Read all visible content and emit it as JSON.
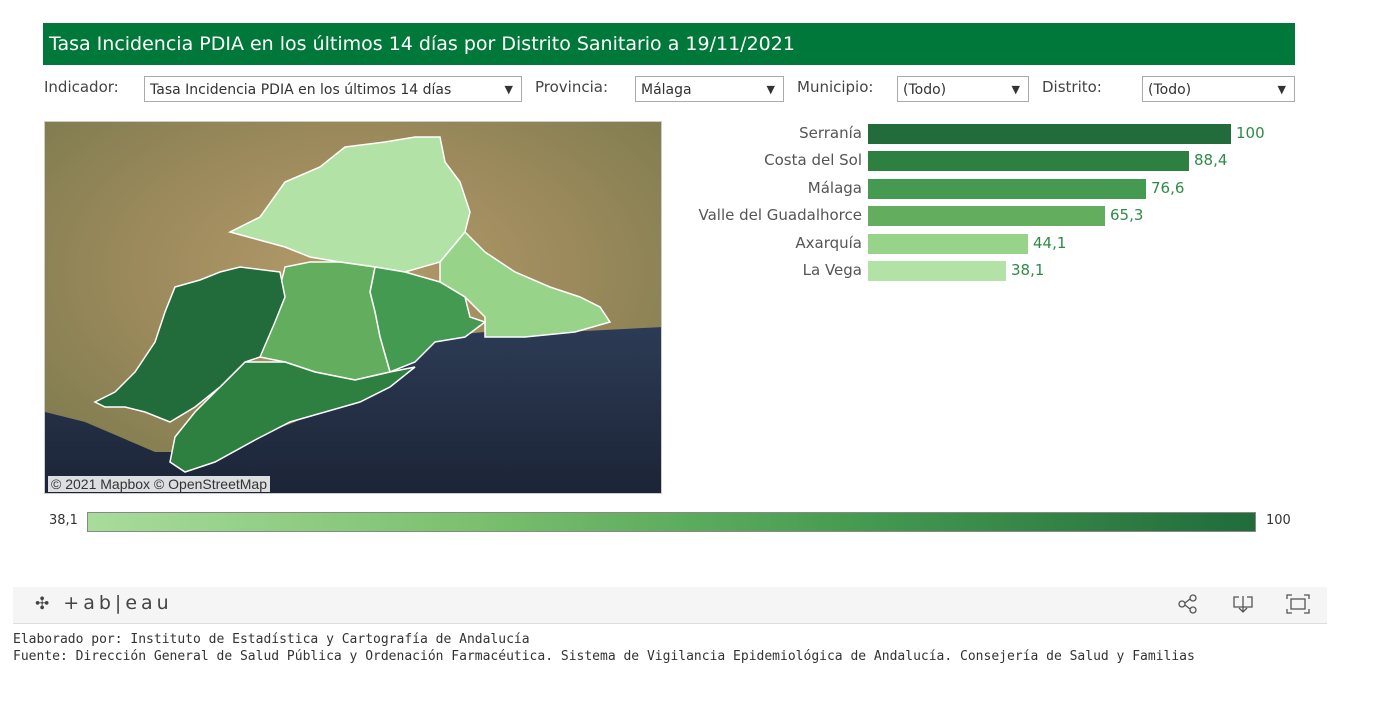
{
  "title": "Tasa Incidencia PDIA en los últimos 14 días por Distrito Sanitario a 19/11/2021",
  "filters": {
    "indicador_label": "Indicador:",
    "indicador_value": "Tasa Incidencia PDIA en los últimos 14 días",
    "provincia_label": "Provincia:",
    "provincia_value": "Málaga",
    "municipio_label": "Municipio:",
    "municipio_value": "(Todo)",
    "distrito_label": "Distrito:",
    "distrito_value": "(Todo)"
  },
  "map": {
    "attribution": "© 2021 Mapbox  © OpenStreetMap"
  },
  "chart_data": {
    "type": "bar",
    "orientation": "horizontal",
    "categories": [
      "Serranía",
      "Costa del Sol",
      "Málaga",
      "Valle del Guadalhorce",
      "Axarquía",
      "La Vega"
    ],
    "values": [
      100,
      88.4,
      76.6,
      65.3,
      44.1,
      38.1
    ],
    "value_labels": [
      "100",
      "88,4",
      "76,6",
      "65,3",
      "44,1",
      "38,1"
    ],
    "colors": [
      "#226b3b",
      "#2e8040",
      "#449a50",
      "#62ad5e",
      "#97d48a",
      "#b2e2a5"
    ]
  },
  "legend": {
    "min": "38,1",
    "max": "100"
  },
  "toolbar": {
    "logo": "+ab|eau",
    "share_icon": "share-icon",
    "download_icon": "download-icon",
    "fullscreen_icon": "fullscreen-icon"
  },
  "footer": {
    "line1": "Elaborado por: Instituto de Estadística y Cartografía de Andalucía",
    "line2": "Fuente: Dirección General de Salud Pública y Ordenación Farmacéutica. Sistema de Vigilancia Epidemiológica de Andalucía. Consejería de Salud y Familias"
  }
}
